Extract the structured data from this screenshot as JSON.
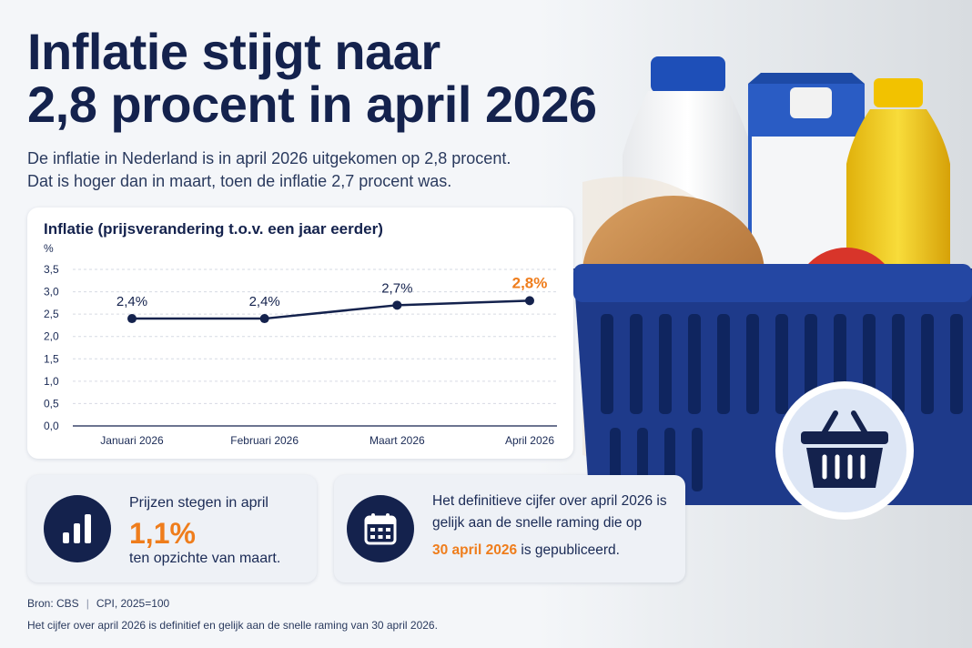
{
  "headline": {
    "line1": "Inflatie stijgt naar",
    "line2": "2,8 procent in april 2026"
  },
  "intro": {
    "line1": "De inflatie in Nederland is in april 2026 uitgekomen op 2,8 procent.",
    "line2": "Dat is hoger dan in maart, toen de inflatie 2,7 procent was."
  },
  "chart_data": {
    "type": "line",
    "title": "Inflatie (prijsverandering t.o.v. een jaar eerder)",
    "ylabel": "%",
    "categories": [
      "Januari 2026",
      "Februari 2026",
      "Maart 2026",
      "April 2026"
    ],
    "values": [
      2.4,
      2.4,
      2.7,
      2.8
    ],
    "data_labels": [
      "2,4%",
      "2,4%",
      "2,7%",
      "2,8%"
    ],
    "yticks": [
      "0,0",
      "0,5",
      "1,0",
      "1,5",
      "2,0",
      "2,5",
      "3,0",
      "3,5"
    ],
    "ylim": [
      0,
      3.5
    ],
    "grid": true,
    "line_color": "#14224d",
    "highlight_color": "#ef7d1c"
  },
  "card_prices": {
    "line1": "Prijzen stegen in april",
    "value": "1,1%",
    "line2": "ten opzichte van maart."
  },
  "card_definitive": {
    "line1": "Het definitieve cijfer over april 2026 is",
    "line2": "gelijk aan de snelle raming die op",
    "date": "30 april 2026",
    "line3_suffix": " is gepubliceerd."
  },
  "footer": {
    "source": "Bron: CBS",
    "separator": "|",
    "cpi": "CPI, 2025=100",
    "note": "Het cijfer over april 2026 is definitief en gelijk aan de snelle raming van 30 april 2026."
  },
  "colors": {
    "navy": "#14224d",
    "accent": "#ef7d1c",
    "basket": "#1e3a8a"
  },
  "icons": [
    "bar-chart-icon",
    "calendar-icon",
    "shopping-basket-icon"
  ]
}
